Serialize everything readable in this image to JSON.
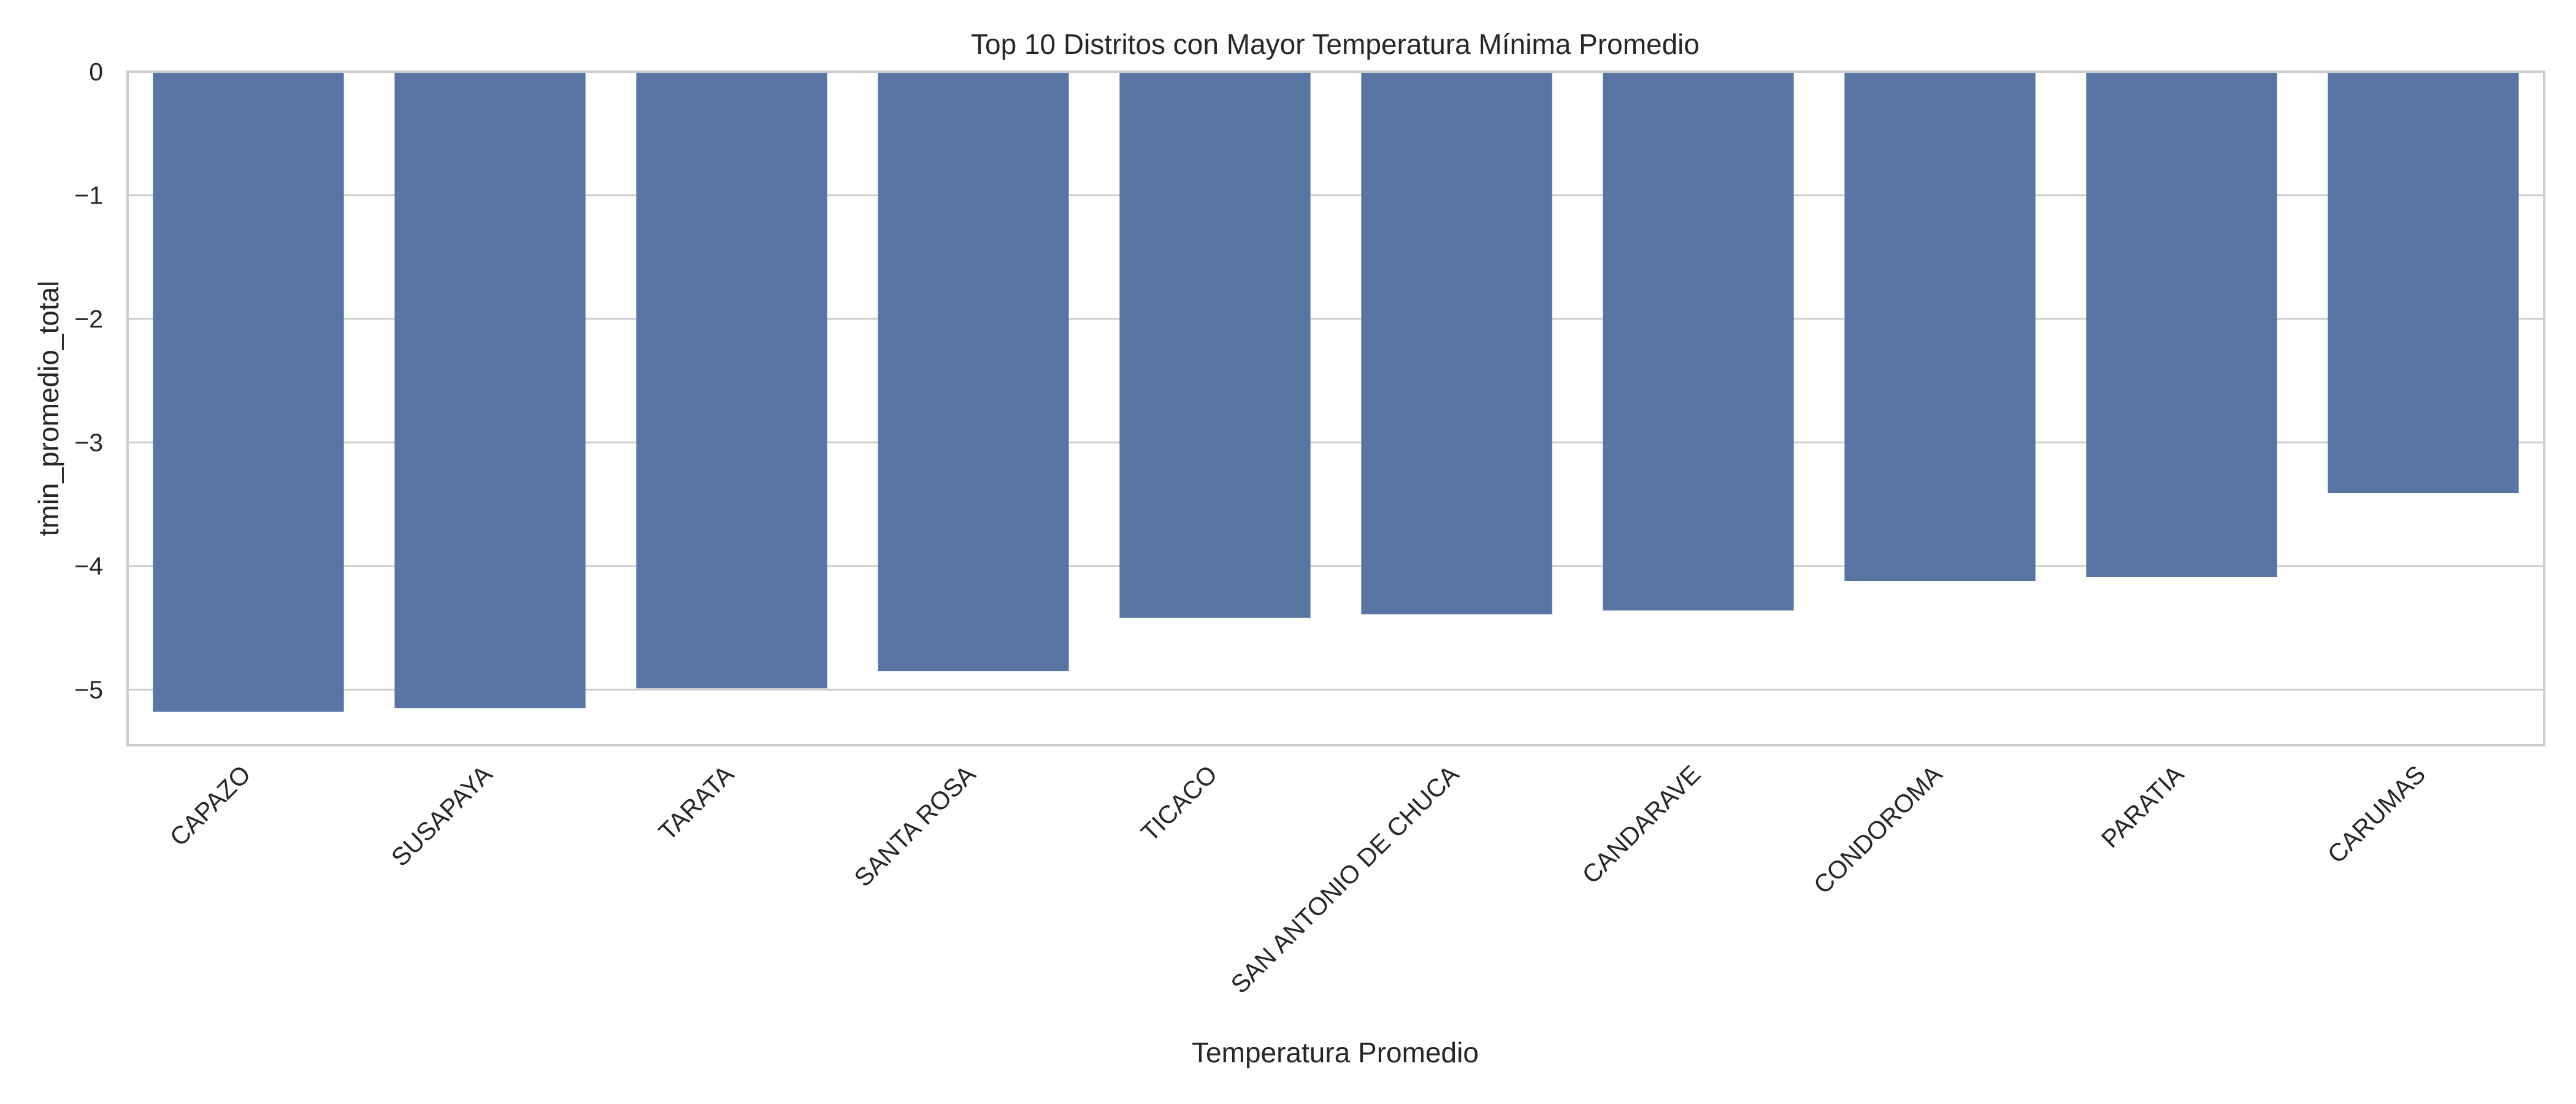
{
  "chart_data": {
    "type": "bar",
    "title": "Top 10 Distritos con Mayor Temperatura Mínima Promedio",
    "xlabel": "Temperatura Promedio",
    "ylabel": "tmin_promedio_total",
    "categories": [
      "CAPAZO",
      "SUSAPAYA",
      "TARATA",
      "SANTA ROSA",
      "TICACO",
      "SAN ANTONIO DE CHUCA",
      "CANDARAVE",
      "CONDOROMA",
      "PARATIA",
      "CARUMAS"
    ],
    "values": [
      -5.18,
      -5.15,
      -4.99,
      -4.85,
      -4.42,
      -4.39,
      -4.36,
      -4.12,
      -4.09,
      -3.41
    ],
    "ylim": [
      -5.45,
      0
    ],
    "yticks": [
      0,
      -1,
      -2,
      -3,
      -4,
      -5
    ],
    "ytick_labels": [
      "0",
      "−1",
      "−2",
      "−3",
      "−4",
      "−5"
    ],
    "grid": "horizontal",
    "legend": "none",
    "bar_color": "#5975a4",
    "grid_color": "#cccccc",
    "text_color": "#262626"
  }
}
